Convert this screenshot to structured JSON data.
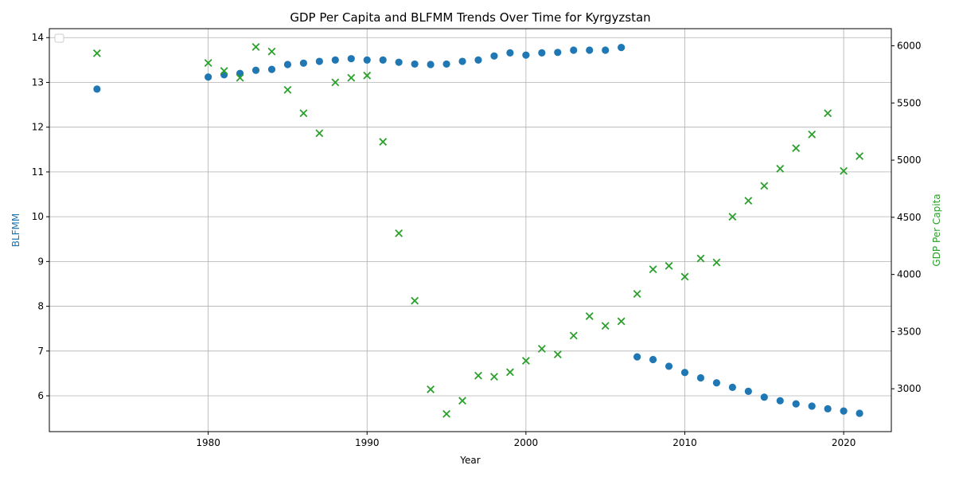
{
  "chart_data": {
    "type": "scatter",
    "title": "GDP Per Capita and BLFMM Trends Over Time for Kyrgyzstan",
    "xlabel": "Year",
    "ylabel_left": "BLFMM",
    "ylabel_right": "GDP Per Capita",
    "xlim": [
      1970,
      2023
    ],
    "ylim_left": [
      5.2,
      14.2
    ],
    "ylim_right": [
      2625,
      6150
    ],
    "x_ticks": [
      1980,
      1990,
      2000,
      2010,
      2020
    ],
    "y_left_ticks": [
      6,
      7,
      8,
      9,
      10,
      11,
      12,
      13,
      14
    ],
    "y_right_ticks": [
      3000,
      3500,
      4000,
      4500,
      5000,
      5500,
      6000
    ],
    "grid": true,
    "legend_placement": "top-left",
    "colors": {
      "blfmm": "#1f77b4",
      "gdp": "#2ca02c"
    },
    "series": [
      {
        "axis": "left",
        "marker": "circle",
        "points": [
          [
            1973,
            12.85
          ],
          [
            1980,
            13.12
          ],
          [
            1981,
            13.17
          ],
          [
            1982,
            13.2
          ],
          [
            1983,
            13.27
          ],
          [
            1984,
            13.29
          ],
          [
            1985,
            13.4
          ],
          [
            1986,
            13.43
          ],
          [
            1987,
            13.47
          ],
          [
            1988,
            13.5
          ],
          [
            1989,
            13.53
          ],
          [
            1990,
            13.5
          ],
          [
            1991,
            13.5
          ],
          [
            1992,
            13.45
          ],
          [
            1993,
            13.41
          ],
          [
            1994,
            13.4
          ],
          [
            1995,
            13.41
          ],
          [
            1996,
            13.47
          ],
          [
            1997,
            13.5
          ],
          [
            1998,
            13.59
          ],
          [
            1999,
            13.66
          ],
          [
            2000,
            13.61
          ],
          [
            2001,
            13.66
          ],
          [
            2002,
            13.67
          ],
          [
            2003,
            13.72
          ],
          [
            2004,
            13.72
          ],
          [
            2005,
            13.72
          ],
          [
            2006,
            13.78
          ],
          [
            2007,
            6.87
          ],
          [
            2008,
            6.81
          ],
          [
            2009,
            6.66
          ],
          [
            2010,
            6.52
          ],
          [
            2011,
            6.4
          ],
          [
            2012,
            6.29
          ],
          [
            2013,
            6.19
          ],
          [
            2014,
            6.1
          ],
          [
            2015,
            5.97
          ],
          [
            2016,
            5.89
          ],
          [
            2017,
            5.82
          ],
          [
            2018,
            5.77
          ],
          [
            2019,
            5.71
          ],
          [
            2020,
            5.66
          ],
          [
            2021,
            5.61
          ]
        ]
      },
      {
        "axis": "right",
        "marker": "x",
        "points": [
          [
            1973,
            5935
          ],
          [
            1980,
            5850
          ],
          [
            1981,
            5780
          ],
          [
            1982,
            5720
          ],
          [
            1983,
            5990
          ],
          [
            1984,
            5950
          ],
          [
            1985,
            5615
          ],
          [
            1986,
            5410
          ],
          [
            1987,
            5235
          ],
          [
            1988,
            5680
          ],
          [
            1989,
            5720
          ],
          [
            1990,
            5740
          ],
          [
            1991,
            5160
          ],
          [
            1992,
            4360
          ],
          [
            1993,
            3770
          ],
          [
            1994,
            2995
          ],
          [
            1995,
            2780
          ],
          [
            1996,
            2895
          ],
          [
            1997,
            3115
          ],
          [
            1998,
            3105
          ],
          [
            1999,
            3145
          ],
          [
            2000,
            3245
          ],
          [
            2001,
            3350
          ],
          [
            2002,
            3300
          ],
          [
            2003,
            3465
          ],
          [
            2004,
            3635
          ],
          [
            2005,
            3550
          ],
          [
            2006,
            3590
          ],
          [
            2007,
            3830
          ],
          [
            2008,
            4045
          ],
          [
            2009,
            4075
          ],
          [
            2010,
            3980
          ],
          [
            2011,
            4140
          ],
          [
            2012,
            4105
          ],
          [
            2013,
            4505
          ],
          [
            2014,
            4645
          ],
          [
            2015,
            4775
          ],
          [
            2016,
            4925
          ],
          [
            2017,
            5105
          ],
          [
            2018,
            5225
          ],
          [
            2019,
            5410
          ],
          [
            2020,
            4905
          ],
          [
            2021,
            5035
          ]
        ]
      }
    ]
  }
}
